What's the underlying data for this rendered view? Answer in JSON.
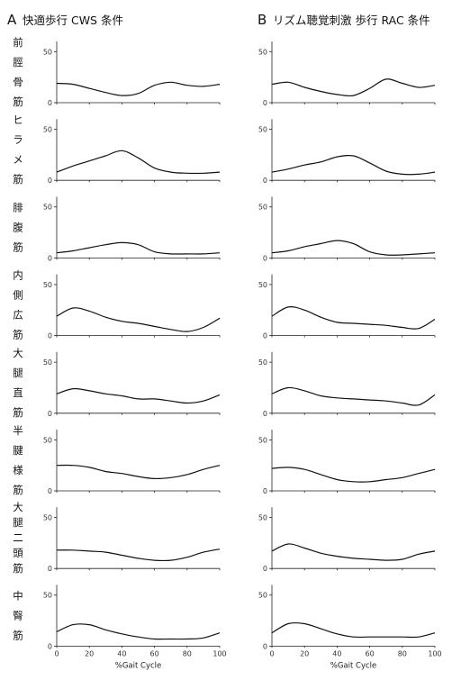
{
  "panels": [
    {
      "letter": "A",
      "title": "快適歩行 CWS 条件"
    },
    {
      "letter": "B",
      "title": "リズム聴覚刺激 歩行 RAC 条件"
    }
  ],
  "muscles": [
    {
      "name": [
        "前",
        "脛",
        "骨",
        "筋"
      ]
    },
    {
      "name": [
        "ヒ",
        "ラ",
        "メ",
        "筋"
      ]
    },
    {
      "name": [
        "腓",
        "腹",
        "筋"
      ]
    },
    {
      "name": [
        "内",
        "側",
        "広",
        "筋"
      ]
    },
    {
      "name": [
        "大",
        "腿",
        "直",
        "筋"
      ]
    },
    {
      "name": [
        "半",
        "腱",
        "様",
        "筋"
      ]
    },
    {
      "name": [
        "大",
        "腿",
        "二",
        "頭",
        "筋"
      ]
    },
    {
      "name": [
        "中",
        "臀",
        "筋"
      ]
    }
  ],
  "chart_data": {
    "type": "line",
    "xlabel": "%Gait Cycle",
    "xlim": [
      0,
      100
    ],
    "xticks": [
      0,
      20,
      40,
      60,
      80,
      100
    ],
    "ylim": [
      0,
      60
    ],
    "yticks": [
      0,
      50
    ],
    "x": [
      0,
      10,
      20,
      30,
      40,
      50,
      60,
      70,
      80,
      90,
      100
    ],
    "panels": [
      {
        "panel": "A",
        "series": [
          {
            "muscle": "前脛骨筋",
            "values": [
              19,
              18,
              14,
              10,
              7,
              9,
              17,
              20,
              17,
              16,
              18
            ]
          },
          {
            "muscle": "ヒラメ筋",
            "values": [
              8,
              14,
              19,
              24,
              29,
              22,
              12,
              8,
              7,
              7,
              8
            ]
          },
          {
            "muscle": "腓腹筋",
            "values": [
              5,
              7,
              10,
              13,
              15,
              13,
              6,
              4,
              4,
              4,
              5
            ]
          },
          {
            "muscle": "内側広筋",
            "values": [
              19,
              27,
              24,
              18,
              14,
              12,
              9,
              6,
              4,
              8,
              17
            ]
          },
          {
            "muscle": "大腿直筋",
            "values": [
              19,
              24,
              22,
              19,
              17,
              14,
              14,
              12,
              10,
              12,
              18
            ]
          },
          {
            "muscle": "半腱様筋",
            "values": [
              25,
              25,
              23,
              19,
              17,
              14,
              12,
              13,
              16,
              21,
              25
            ]
          },
          {
            "muscle": "大腿二頭筋",
            "values": [
              18,
              18,
              17,
              16,
              13,
              10,
              8,
              8,
              11,
              16,
              19
            ]
          },
          {
            "muscle": "中臀筋",
            "values": [
              14,
              21,
              21,
              16,
              12,
              9,
              7,
              7,
              7,
              8,
              13
            ]
          }
        ]
      },
      {
        "panel": "B",
        "series": [
          {
            "muscle": "前脛骨筋",
            "values": [
              18,
              20,
              15,
              11,
              8,
              7,
              14,
              23,
              19,
              15,
              17
            ]
          },
          {
            "muscle": "ヒラメ筋",
            "values": [
              8,
              11,
              15,
              18,
              23,
              24,
              17,
              9,
              6,
              6,
              8
            ]
          },
          {
            "muscle": "腓腹筋",
            "values": [
              5,
              7,
              11,
              14,
              17,
              14,
              6,
              3,
              3,
              4,
              5
            ]
          },
          {
            "muscle": "内側広筋",
            "values": [
              19,
              28,
              25,
              18,
              13,
              12,
              11,
              10,
              8,
              7,
              16
            ]
          },
          {
            "muscle": "大腿直筋",
            "values": [
              19,
              25,
              22,
              17,
              15,
              14,
              13,
              12,
              10,
              8,
              18
            ]
          },
          {
            "muscle": "半腱様筋",
            "values": [
              22,
              23,
              21,
              16,
              11,
              9,
              9,
              11,
              13,
              17,
              21
            ]
          },
          {
            "muscle": "大腿二頭筋",
            "values": [
              17,
              24,
              20,
              15,
              12,
              10,
              9,
              8,
              9,
              14,
              17
            ]
          },
          {
            "muscle": "中臀筋",
            "values": [
              13,
              22,
              22,
              17,
              12,
              9,
              9,
              9,
              9,
              9,
              13
            ]
          }
        ]
      }
    ]
  }
}
